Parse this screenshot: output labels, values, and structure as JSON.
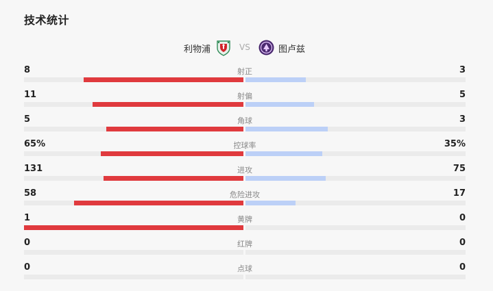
{
  "title": "技术统计",
  "match": {
    "home_team": "利物浦",
    "vs": "VS",
    "away_team": "图卢兹"
  },
  "colors": {
    "home_bar": "#e03a3e",
    "away_bar": "#bcd0f7",
    "track": "#ebebeb"
  },
  "stats": [
    {
      "label": "射正",
      "home": "8",
      "away": "3",
      "home_ratio": 0.727,
      "away_ratio": 0.273
    },
    {
      "label": "射偏",
      "home": "11",
      "away": "5",
      "home_ratio": 0.688,
      "away_ratio": 0.312
    },
    {
      "label": "角球",
      "home": "5",
      "away": "3",
      "home_ratio": 0.625,
      "away_ratio": 0.375
    },
    {
      "label": "控球率",
      "home": "65%",
      "away": "35%",
      "home_ratio": 0.65,
      "away_ratio": 0.35
    },
    {
      "label": "进攻",
      "home": "131",
      "away": "75",
      "home_ratio": 0.636,
      "away_ratio": 0.364
    },
    {
      "label": "危险进攻",
      "home": "58",
      "away": "17",
      "home_ratio": 0.773,
      "away_ratio": 0.227
    },
    {
      "label": "黄牌",
      "home": "1",
      "away": "0",
      "home_ratio": 1.0,
      "away_ratio": 0.0
    },
    {
      "label": "红牌",
      "home": "0",
      "away": "0",
      "home_ratio": 0.0,
      "away_ratio": 0.0
    },
    {
      "label": "点球",
      "home": "0",
      "away": "0",
      "home_ratio": 0.0,
      "away_ratio": 0.0
    }
  ]
}
